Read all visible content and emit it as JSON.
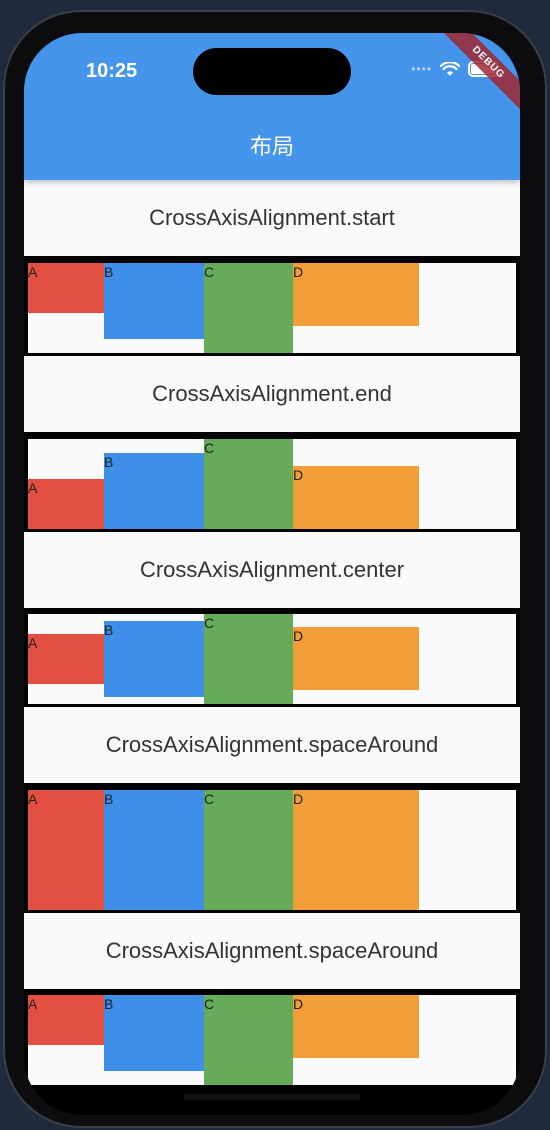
{
  "status_bar": {
    "time": "10:25"
  },
  "debug_banner": "DEBUG",
  "app_bar": {
    "title": "布局"
  },
  "sections": [
    {
      "label": "CrossAxisAlignment.start",
      "alignment": "start"
    },
    {
      "label": "CrossAxisAlignment.end",
      "alignment": "end"
    },
    {
      "label": "CrossAxisAlignment.center",
      "alignment": "center"
    },
    {
      "label": "CrossAxisAlignment.spaceAround",
      "alignment": "stretch"
    },
    {
      "label": "CrossAxisAlignment.spaceAround",
      "alignment": "start"
    }
  ],
  "blocks": [
    {
      "letter": "A",
      "color": "#e34f40"
    },
    {
      "letter": "B",
      "color": "#3f8fe8"
    },
    {
      "letter": "C",
      "color": "#65ab5a"
    },
    {
      "letter": "D",
      "color": "#f29e38"
    }
  ]
}
